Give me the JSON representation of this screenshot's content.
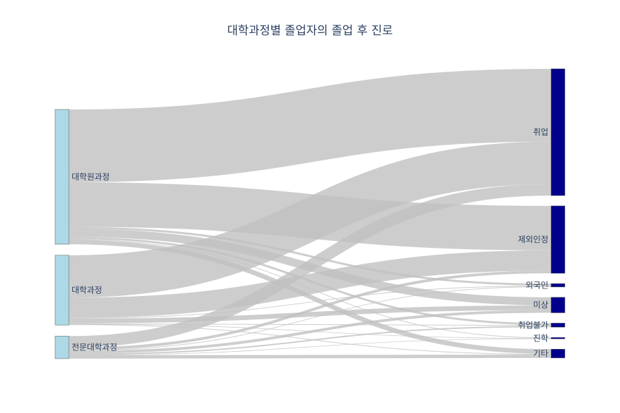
{
  "chart_data": {
    "type": "sankey",
    "title": "대학과정별 졸업자의 졸업 후 진로",
    "colors": {
      "source_node": "#add8e6",
      "target_node": "#00008b",
      "link": "#c0c0c0",
      "node_border": "#555555"
    },
    "sources": [
      {
        "id": "grad",
        "label": "대학원과정"
      },
      {
        "id": "univ",
        "label": "대학과정"
      },
      {
        "id": "college",
        "label": "전문대학과정"
      }
    ],
    "targets": [
      {
        "id": "employ",
        "label": "취업"
      },
      {
        "id": "excluded",
        "label": "제외인정"
      },
      {
        "id": "foreign",
        "label": "외국인"
      },
      {
        "id": "unknown",
        "label": "미상"
      },
      {
        "id": "unemployable",
        "label": "취업불가"
      },
      {
        "id": "further",
        "label": "진학"
      },
      {
        "id": "other",
        "label": "기타"
      }
    ],
    "links": [
      {
        "source": "grad",
        "target": "employ",
        "value": 108
      },
      {
        "source": "grad",
        "target": "excluded",
        "value": 66
      },
      {
        "source": "grad",
        "target": "foreign",
        "value": 3
      },
      {
        "source": "grad",
        "target": "unknown",
        "value": 12
      },
      {
        "source": "grad",
        "target": "unemployable",
        "value": 3
      },
      {
        "source": "grad",
        "target": "further",
        "value": 1
      },
      {
        "source": "grad",
        "target": "other",
        "value": 7
      },
      {
        "source": "univ",
        "target": "employ",
        "value": 63
      },
      {
        "source": "univ",
        "target": "excluded",
        "value": 30
      },
      {
        "source": "univ",
        "target": "foreign",
        "value": 1
      },
      {
        "source": "univ",
        "target": "unknown",
        "value": 7
      },
      {
        "source": "univ",
        "target": "unemployable",
        "value": 1
      },
      {
        "source": "univ",
        "target": "further",
        "value": 0.5
      },
      {
        "source": "univ",
        "target": "other",
        "value": 1
      },
      {
        "source": "college",
        "target": "employ",
        "value": 17
      },
      {
        "source": "college",
        "target": "excluded",
        "value": 4
      },
      {
        "source": "college",
        "target": "foreign",
        "value": 1
      },
      {
        "source": "college",
        "target": "unknown",
        "value": 4
      },
      {
        "source": "college",
        "target": "unemployable",
        "value": 2
      },
      {
        "source": "college",
        "target": "further",
        "value": 0.5
      },
      {
        "source": "college",
        "target": "other",
        "value": 5
      }
    ]
  }
}
